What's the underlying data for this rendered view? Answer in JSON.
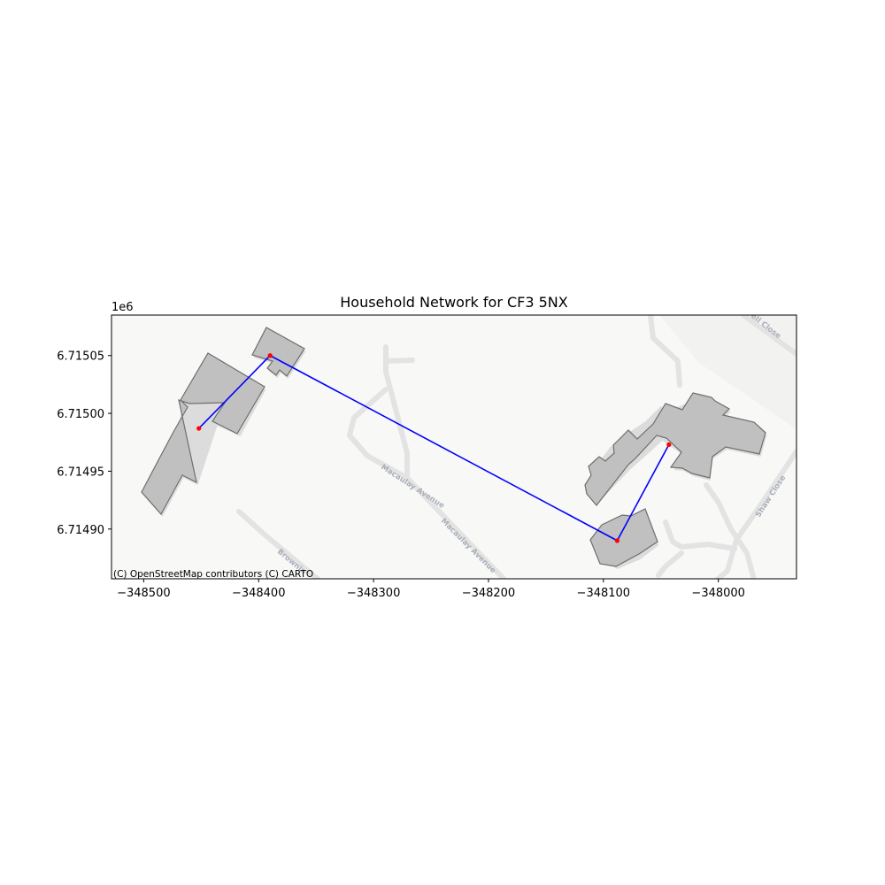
{
  "chart_data": {
    "type": "map",
    "title": "Household Network for CF3 5NX",
    "x_ticks": [
      -348500,
      -348400,
      -348300,
      -348200,
      -348100,
      -348000
    ],
    "y_ticks": [
      6.71505,
      6.715,
      6.71495,
      6.7149
    ],
    "x_tick_labels": [
      "−348500",
      "−348400",
      "−348300",
      "−348200",
      "−348100",
      "−348000"
    ],
    "y_tick_labels": [
      "6.71505",
      "6.71500",
      "6.71495",
      "6.71490"
    ],
    "y_offset_label": "1e6",
    "xlim": [
      -348528,
      -347932
    ],
    "ylim": [
      6.714857,
      6.715085
    ],
    "nodes": [
      {
        "x": -348452,
        "y": 6.714987
      },
      {
        "x": -348390,
        "y": 6.71505
      },
      {
        "x": -348088,
        "y": 6.71489
      },
      {
        "x": -348043,
        "y": 6.714973
      }
    ],
    "edges": [
      [
        0,
        1
      ],
      [
        1,
        2
      ],
      [
        2,
        3
      ]
    ],
    "node_color": "#ff0000",
    "edge_color": "#0000ff",
    "building_color": "#c0c0c0",
    "street_labels": [
      "Macaulay Avenue",
      "Macaulay Avenue",
      "Brownin",
      "Shaw Close",
      "ell Close"
    ],
    "attribution": "(C) OpenStreetMap contributors (C) CARTO"
  }
}
